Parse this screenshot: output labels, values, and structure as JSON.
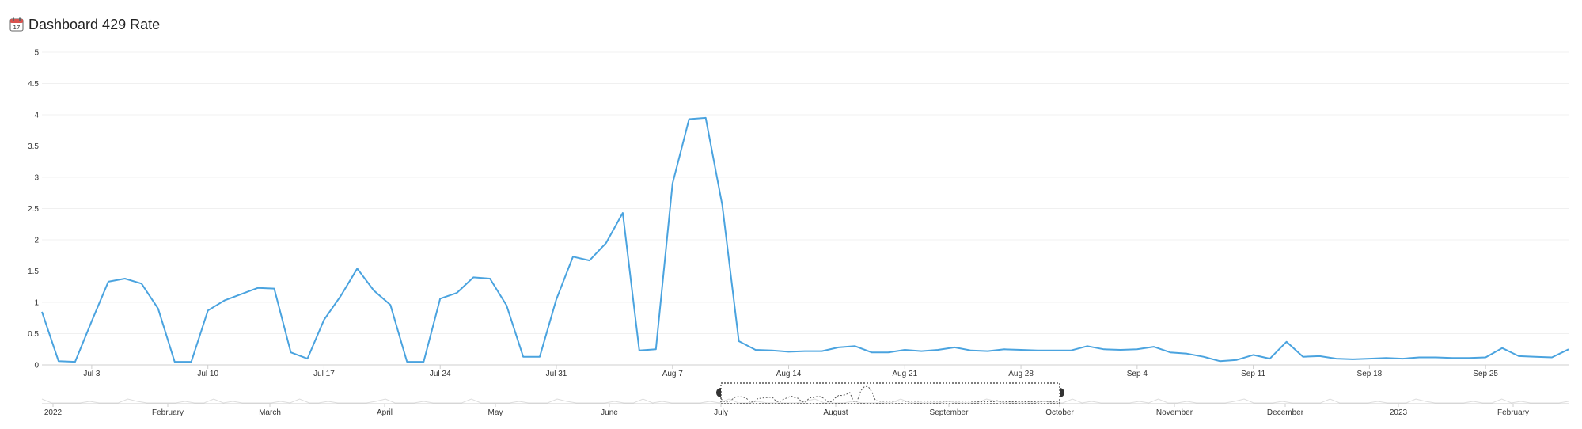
{
  "header": {
    "title": "Dashboard 429 Rate",
    "icon": "calendar-icon"
  },
  "chart_data": {
    "type": "line",
    "title": "Dashboard 429 Rate",
    "xlabel": "",
    "ylabel": "",
    "ylim": [
      0,
      5
    ],
    "y_ticks": [
      "0",
      "0.5",
      "1",
      "1.5",
      "2",
      "2.5",
      "3",
      "3.5",
      "4",
      "4.5",
      "5"
    ],
    "x_ticks": [
      "Jul 3",
      "Jul 10",
      "Jul 17",
      "Jul 24",
      "Jul 31",
      "Aug 7",
      "Aug 14",
      "Aug 21",
      "Aug 28",
      "Sep 4",
      "Sep 11",
      "Sep 18",
      "Sep 25"
    ],
    "grid": true,
    "line_color": "#4aa3df",
    "series": [
      {
        "values": [
          0.85,
          0.06,
          0.05,
          0.7,
          1.33,
          1.38,
          1.3,
          0.9,
          0.05,
          0.05,
          0.87,
          1.03,
          1.13,
          1.23,
          1.22,
          0.2,
          0.1,
          0.72,
          1.1,
          1.54,
          1.19,
          0.96,
          0.05,
          0.05,
          1.06,
          1.15,
          1.4,
          1.38,
          0.95,
          0.13,
          0.13,
          1.05,
          1.73,
          1.67,
          1.95,
          2.43,
          0.23,
          0.25,
          2.9,
          3.93,
          3.95,
          2.55,
          0.38,
          0.24,
          0.23,
          0.21,
          0.22,
          0.22,
          0.28,
          0.3,
          0.2,
          0.2,
          0.24,
          0.22,
          0.24,
          0.28,
          0.23,
          0.22,
          0.25,
          0.24,
          0.23,
          0.23,
          0.23,
          0.3,
          0.25,
          0.24,
          0.25,
          0.29,
          0.2,
          0.18,
          0.13,
          0.06,
          0.08,
          0.16,
          0.1,
          0.37,
          0.13,
          0.14,
          0.1,
          0.09,
          0.1,
          0.11,
          0.1,
          0.12,
          0.12,
          0.11,
          0.11,
          0.12,
          0.27,
          0.14,
          0.13,
          0.12,
          0.25
        ]
      }
    ],
    "navigator": {
      "x_ticks": [
        "2022",
        "February",
        "March",
        "April",
        "May",
        "June",
        "July",
        "August",
        "September",
        "October",
        "November",
        "December",
        "2023",
        "February"
      ],
      "selected_range": [
        "July",
        "October"
      ]
    }
  }
}
